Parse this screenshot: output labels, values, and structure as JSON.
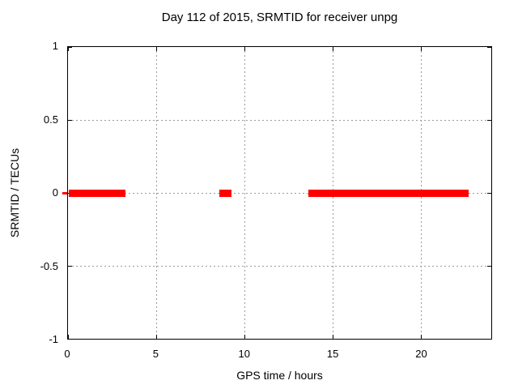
{
  "title": "Day 112 of 2015, SRMTID for receiver unpg",
  "colors": {
    "series": "#ff0000",
    "grid": "#9a9a9a",
    "border": "#000000",
    "text": "#000000",
    "background": "#ffffff"
  },
  "chart_data": {
    "type": "line",
    "title": "Day 112 of 2015, SRMTID for receiver unpg",
    "xlabel": "GPS time / hours",
    "ylabel": "SRMTID / TECUs",
    "xlim": [
      0,
      24
    ],
    "ylim": [
      -1,
      1
    ],
    "xticks": [
      0,
      5,
      10,
      15,
      20
    ],
    "yticks": [
      1,
      0.5,
      0,
      -0.5,
      -1
    ],
    "grid": true,
    "legend": "none",
    "series": [
      {
        "name": "SRMTID",
        "color": "#ff0000",
        "y_value": 0,
        "segments": [
          {
            "start_hour": 0.05,
            "end_hour": 3.27
          },
          {
            "start_hour": 8.6,
            "end_hour": 9.25
          },
          {
            "start_hour": 13.65,
            "end_hour": 22.7
          }
        ],
        "left_edge_tick_at_zero": true
      }
    ]
  }
}
